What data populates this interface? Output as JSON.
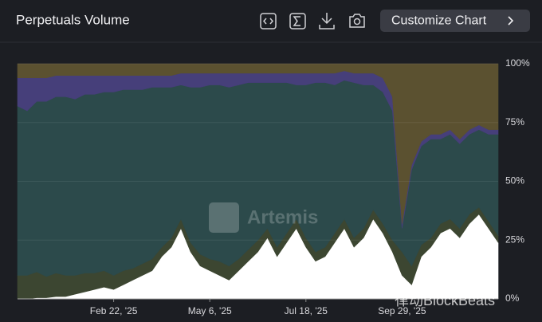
{
  "header": {
    "title": "Perpetuals Volume",
    "button": "Customize Chart"
  },
  "watermarks": [
    "Artemis",
    "律动BlockBeats"
  ],
  "chart_data": {
    "type": "stacked_area",
    "categories": [
      null,
      null,
      null,
      null,
      null,
      null,
      null,
      null,
      null,
      null,
      "Feb 22, '25",
      null,
      null,
      null,
      null,
      null,
      null,
      null,
      null,
      null,
      "May 6, '25",
      null,
      null,
      null,
      null,
      null,
      null,
      null,
      null,
      null,
      "Jul 18, '25",
      null,
      null,
      null,
      null,
      null,
      null,
      null,
      null,
      null,
      "Sep 29, '25",
      null,
      null,
      null,
      null,
      null,
      null,
      null,
      null,
      null,
      null
    ],
    "ylim": [
      0,
      100
    ],
    "yticks": [
      {
        "value": 0,
        "label": "0%"
      },
      {
        "value": 25,
        "label": "25%"
      },
      {
        "value": 50,
        "label": "50%"
      },
      {
        "value": 75,
        "label": "75%"
      },
      {
        "value": 100,
        "label": "100%"
      }
    ],
    "series": [
      {
        "color": "#ffffff",
        "values": [
          0,
          0,
          0.5,
          0.5,
          1,
          1,
          2,
          3,
          4,
          5,
          4,
          6,
          8,
          10,
          12,
          18,
          22,
          30,
          20,
          14,
          12,
          10,
          8,
          12,
          16,
          20,
          26,
          18,
          24,
          30,
          22,
          16,
          18,
          24,
          30,
          22,
          26,
          34,
          28,
          20,
          10,
          6,
          18,
          22,
          28,
          30,
          26,
          32,
          36,
          30,
          24
        ]
      },
      {
        "color": "#3c4631",
        "values": [
          10,
          10,
          11,
          9,
          10,
          9,
          8,
          8,
          7,
          7,
          6,
          6,
          5,
          5,
          5,
          4,
          4,
          4,
          4,
          5,
          5,
          6,
          6,
          5,
          5,
          5,
          4,
          4,
          4,
          4,
          4,
          4,
          4,
          4,
          4,
          4,
          4,
          4,
          4,
          5,
          10,
          8,
          5,
          4,
          4,
          4,
          4,
          4,
          3,
          3,
          3
        ]
      },
      {
        "color": "#2c4a4b",
        "values": [
          72,
          70,
          72.5,
          74.5,
          75,
          76,
          75,
          76,
          76,
          76,
          78,
          77,
          76,
          74,
          73,
          68,
          64,
          57,
          66,
          71,
          74,
          75,
          76,
          74,
          71,
          67,
          62,
          70,
          64,
          57,
          65,
          72,
          70,
          63,
          59,
          66,
          61,
          53,
          56,
          55,
          10,
          41,
          42,
          42,
          36,
          36,
          36,
          34,
          33,
          37,
          43
        ]
      },
      {
        "color": "#463f7a",
        "values": [
          12,
          14,
          10,
          10,
          9,
          9,
          10,
          8,
          8,
          7,
          7,
          6,
          6,
          6,
          5,
          5,
          5,
          5,
          6,
          6,
          5,
          5,
          6,
          5,
          4,
          4,
          4,
          4,
          4,
          5,
          5,
          4,
          4,
          5,
          4,
          4,
          5,
          5,
          6,
          6,
          2,
          2,
          2,
          2,
          2,
          2,
          2,
          2,
          2,
          2,
          2
        ]
      },
      {
        "color": "#5b5130",
        "values": [
          6,
          6,
          6,
          6,
          5,
          5,
          5,
          5,
          5,
          5,
          5,
          5,
          5,
          5,
          5,
          5,
          5,
          4,
          4,
          4,
          4,
          4,
          4,
          4,
          4,
          4,
          4,
          4,
          4,
          4,
          4,
          4,
          4,
          4,
          3,
          4,
          4,
          4,
          6,
          14,
          68,
          43,
          33,
          30,
          30,
          28,
          32,
          28,
          26,
          28,
          28
        ]
      }
    ]
  }
}
